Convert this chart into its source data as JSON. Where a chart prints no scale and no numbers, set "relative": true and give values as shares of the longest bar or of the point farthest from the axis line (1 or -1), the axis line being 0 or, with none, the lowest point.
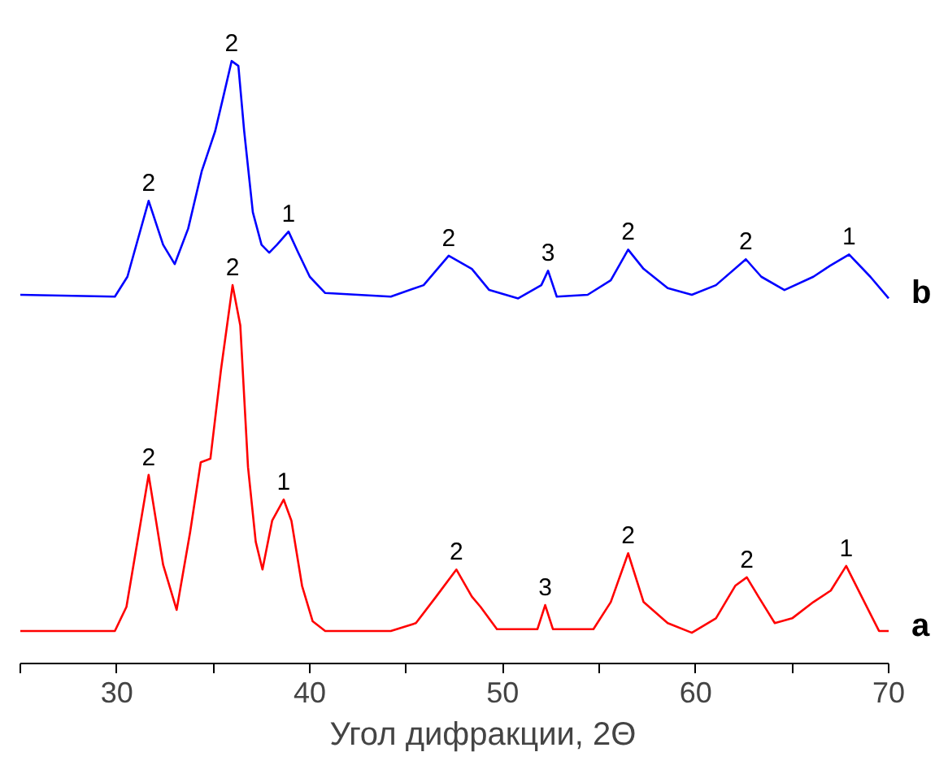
{
  "chart_data": {
    "type": "line",
    "xlabel": "Угол дифракции, 2Θ",
    "relative": true,
    "xlim": [
      25,
      70
    ],
    "xticks": [
      {
        "value": 25,
        "label": null
      },
      30,
      {
        "value": 35,
        "label": null
      },
      40,
      {
        "value": 45,
        "label": null
      },
      50,
      {
        "value": 55,
        "label": null
      },
      60,
      {
        "value": 65,
        "label": null
      },
      70
    ],
    "tick_labels": "x",
    "grid": false,
    "marker": "none",
    "line_style": "solid",
    "series": [
      {
        "name": "b",
        "color": "#0000ff",
        "x": [
          25.0,
          29.9,
          30.55,
          31.65,
          32.4,
          33.0,
          33.7,
          34.4,
          35.1,
          35.5,
          35.95,
          36.3,
          36.6,
          37.05,
          37.5,
          37.9,
          38.3,
          38.9,
          39.4,
          40.0,
          40.8,
          44.2,
          45.9,
          47.2,
          48.4,
          49.3,
          50.8,
          52.0,
          52.35,
          52.8,
          54.4,
          55.6,
          56.5,
          57.3,
          58.55,
          59.8,
          61.05,
          62.6,
          63.4,
          64.6,
          66.1,
          66.95,
          67.95,
          69.05,
          70.0
        ],
        "values": [
          0.612,
          0.609,
          0.642,
          0.768,
          0.695,
          0.663,
          0.722,
          0.817,
          0.884,
          0.938,
          1.0,
          0.992,
          0.884,
          0.749,
          0.695,
          0.682,
          0.695,
          0.717,
          0.682,
          0.642,
          0.615,
          0.609,
          0.628,
          0.677,
          0.655,
          0.62,
          0.606,
          0.628,
          0.652,
          0.609,
          0.612,
          0.636,
          0.687,
          0.655,
          0.623,
          0.612,
          0.628,
          0.671,
          0.642,
          0.62,
          0.642,
          0.66,
          0.679,
          0.642,
          0.606
        ]
      },
      {
        "name": "a",
        "color": "#ff0000",
        "x": [
          25.0,
          29.9,
          30.5,
          31.65,
          32.4,
          33.1,
          33.8,
          34.35,
          34.85,
          35.4,
          36.0,
          36.4,
          36.8,
          37.2,
          37.55,
          38.05,
          38.65,
          39.05,
          39.6,
          40.15,
          40.8,
          44.2,
          45.5,
          46.55,
          47.6,
          48.4,
          48.85,
          49.7,
          51.8,
          52.2,
          52.6,
          54.7,
          55.6,
          56.5,
          57.3,
          58.55,
          59.8,
          61.05,
          62.05,
          62.65,
          63.25,
          64.1,
          65.0,
          66.1,
          67.0,
          67.8,
          68.6,
          69.5,
          70.0
        ],
        "values": [
          0.054,
          0.054,
          0.094,
          0.313,
          0.164,
          0.089,
          0.218,
          0.334,
          0.34,
          0.488,
          0.628,
          0.561,
          0.326,
          0.202,
          0.156,
          0.237,
          0.272,
          0.237,
          0.129,
          0.07,
          0.054,
          0.054,
          0.067,
          0.111,
          0.156,
          0.111,
          0.094,
          0.057,
          0.057,
          0.097,
          0.057,
          0.057,
          0.102,
          0.183,
          0.102,
          0.067,
          0.051,
          0.075,
          0.129,
          0.143,
          0.111,
          0.067,
          0.075,
          0.102,
          0.121,
          0.162,
          0.111,
          0.054,
          0.054
        ]
      }
    ],
    "annotations": [
      {
        "text": "2",
        "x": 31.65,
        "y": 0.768
      },
      {
        "text": "2",
        "x": 35.95,
        "y": 1.0
      },
      {
        "text": "1",
        "x": 38.9,
        "y": 0.717
      },
      {
        "text": "2",
        "x": 47.2,
        "y": 0.677
      },
      {
        "text": "3",
        "x": 52.35,
        "y": 0.652
      },
      {
        "text": "2",
        "x": 56.5,
        "y": 0.687
      },
      {
        "text": "2",
        "x": 62.6,
        "y": 0.671
      },
      {
        "text": "1",
        "x": 67.95,
        "y": 0.679
      },
      {
        "text": "2",
        "x": 31.65,
        "y": 0.313
      },
      {
        "text": "2",
        "x": 36.0,
        "y": 0.628
      },
      {
        "text": "1",
        "x": 38.65,
        "y": 0.272
      },
      {
        "text": "2",
        "x": 47.6,
        "y": 0.156
      },
      {
        "text": "3",
        "x": 52.2,
        "y": 0.097
      },
      {
        "text": "2",
        "x": 56.5,
        "y": 0.183
      },
      {
        "text": "2",
        "x": 62.65,
        "y": 0.143
      },
      {
        "text": "1",
        "x": 67.8,
        "y": 0.162
      }
    ]
  }
}
